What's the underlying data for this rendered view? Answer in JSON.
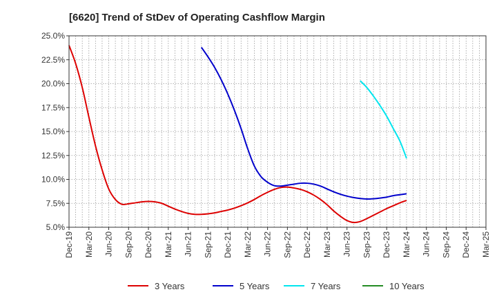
{
  "chart_data": {
    "type": "line",
    "title": "[6620]  Trend of StDev of Operating Cashflow Margin",
    "xlabel": "",
    "ylabel": "",
    "x_ticks": [
      "Dec-19",
      "Mar-20",
      "Jun-20",
      "Sep-20",
      "Dec-20",
      "Mar-21",
      "Jun-21",
      "Sep-21",
      "Dec-21",
      "Mar-22",
      "Jun-22",
      "Sep-22",
      "Dec-22",
      "Mar-23",
      "Jun-23",
      "Sep-23",
      "Dec-23",
      "Mar-24",
      "Jun-24",
      "Sep-24",
      "Dec-24",
      "Mar-25"
    ],
    "y_ticks": [
      "5.0%",
      "7.5%",
      "10.0%",
      "12.5%",
      "15.0%",
      "17.5%",
      "20.0%",
      "22.5%",
      "25.0%"
    ],
    "ylim": [
      5.0,
      25.0
    ],
    "grid": true,
    "legend_position": "bottom",
    "series": [
      {
        "name": "3 Years",
        "color": "#dd0000",
        "x": [
          "Dec-19",
          "Jan-20",
          "Feb-20",
          "Mar-20",
          "Apr-20",
          "May-20",
          "Jun-20",
          "Jul-20",
          "Aug-20",
          "Sep-20",
          "Oct-20",
          "Nov-20",
          "Dec-20",
          "Jan-21",
          "Feb-21",
          "Mar-21",
          "Apr-21",
          "May-21",
          "Jun-21",
          "Jul-21",
          "Aug-21",
          "Sep-21",
          "Oct-21",
          "Nov-21",
          "Dec-21",
          "Jan-22",
          "Feb-22",
          "Mar-22",
          "Apr-22",
          "May-22",
          "Jun-22",
          "Jul-22",
          "Aug-22",
          "Sep-22",
          "Oct-22",
          "Nov-22",
          "Dec-22",
          "Jan-23",
          "Feb-23",
          "Mar-23",
          "Apr-23",
          "May-23",
          "Jun-23",
          "Jul-23",
          "Aug-23",
          "Sep-23",
          "Oct-23",
          "Nov-23",
          "Dec-23",
          "Jan-24",
          "Feb-24",
          "Mar-24"
        ],
        "values": [
          24.0,
          22.1,
          19.6,
          16.5,
          13.5,
          11.0,
          9.0,
          7.9,
          7.4,
          7.45,
          7.55,
          7.65,
          7.7,
          7.65,
          7.5,
          7.2,
          6.9,
          6.65,
          6.45,
          6.35,
          6.35,
          6.4,
          6.5,
          6.65,
          6.8,
          7.0,
          7.25,
          7.55,
          7.9,
          8.3,
          8.65,
          8.95,
          9.15,
          9.2,
          9.1,
          8.95,
          8.7,
          8.35,
          7.9,
          7.35,
          6.7,
          6.15,
          5.7,
          5.5,
          5.6,
          5.9,
          6.25,
          6.6,
          6.95,
          7.25,
          7.55,
          7.8
        ]
      },
      {
        "name": "5 Years",
        "color": "#0000cc",
        "x": [
          "Aug-21",
          "Sep-21",
          "Oct-21",
          "Nov-21",
          "Dec-21",
          "Jan-22",
          "Feb-22",
          "Mar-22",
          "Apr-22",
          "May-22",
          "Jun-22",
          "Jul-22",
          "Aug-22",
          "Sep-22",
          "Oct-22",
          "Nov-22",
          "Dec-22",
          "Jan-23",
          "Feb-23",
          "Mar-23",
          "Apr-23",
          "May-23",
          "Jun-23",
          "Jul-23",
          "Aug-23",
          "Sep-23",
          "Oct-23",
          "Nov-23",
          "Dec-23",
          "Jan-24",
          "Feb-24",
          "Mar-24"
        ],
        "values": [
          23.8,
          22.8,
          21.7,
          20.4,
          18.9,
          17.2,
          15.3,
          13.2,
          11.4,
          10.3,
          9.7,
          9.35,
          9.3,
          9.4,
          9.5,
          9.6,
          9.6,
          9.5,
          9.3,
          9.0,
          8.7,
          8.45,
          8.25,
          8.1,
          8.0,
          7.95,
          7.98,
          8.05,
          8.15,
          8.3,
          8.4,
          8.5
        ]
      },
      {
        "name": "7 Years",
        "color": "#00e5ee",
        "x": [
          "Aug-23",
          "Sep-23",
          "Oct-23",
          "Nov-23",
          "Dec-23",
          "Jan-24",
          "Feb-24",
          "Mar-24"
        ],
        "values": [
          20.3,
          19.6,
          18.7,
          17.7,
          16.6,
          15.3,
          14.0,
          12.2
        ]
      },
      {
        "name": "10 Years",
        "color": "#228b22",
        "x": [],
        "values": []
      }
    ]
  }
}
